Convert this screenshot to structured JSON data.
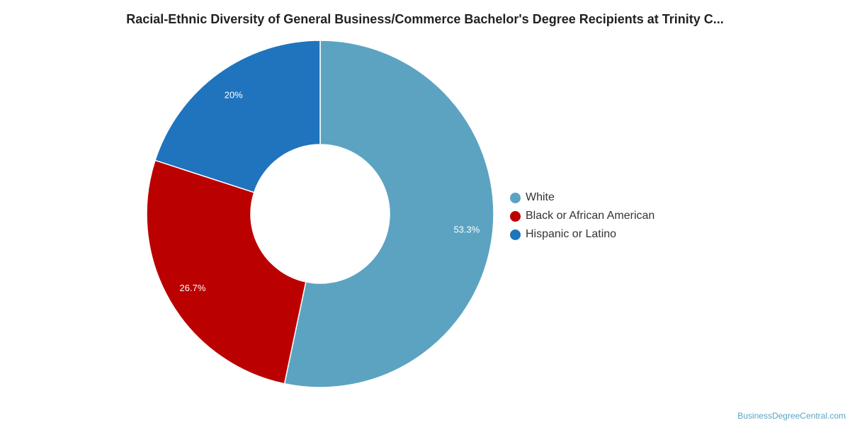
{
  "chart_data": {
    "type": "pie",
    "title": "Racial-Ethnic Diversity of General Business/Commerce Bachelor's Degree Recipients at Trinity C...",
    "categories": [
      "White",
      "Black or African American",
      "Hispanic or Latino"
    ],
    "values": [
      53.3,
      26.7,
      20
    ],
    "labels": [
      "53.3%",
      "26.7%",
      "20%"
    ],
    "colors": [
      "#5ca3c1",
      "#bb0000",
      "#1f74bd"
    ],
    "legend_position": "right",
    "donut": true
  },
  "footer": {
    "credit": "BusinessDegreeCentral.com"
  }
}
